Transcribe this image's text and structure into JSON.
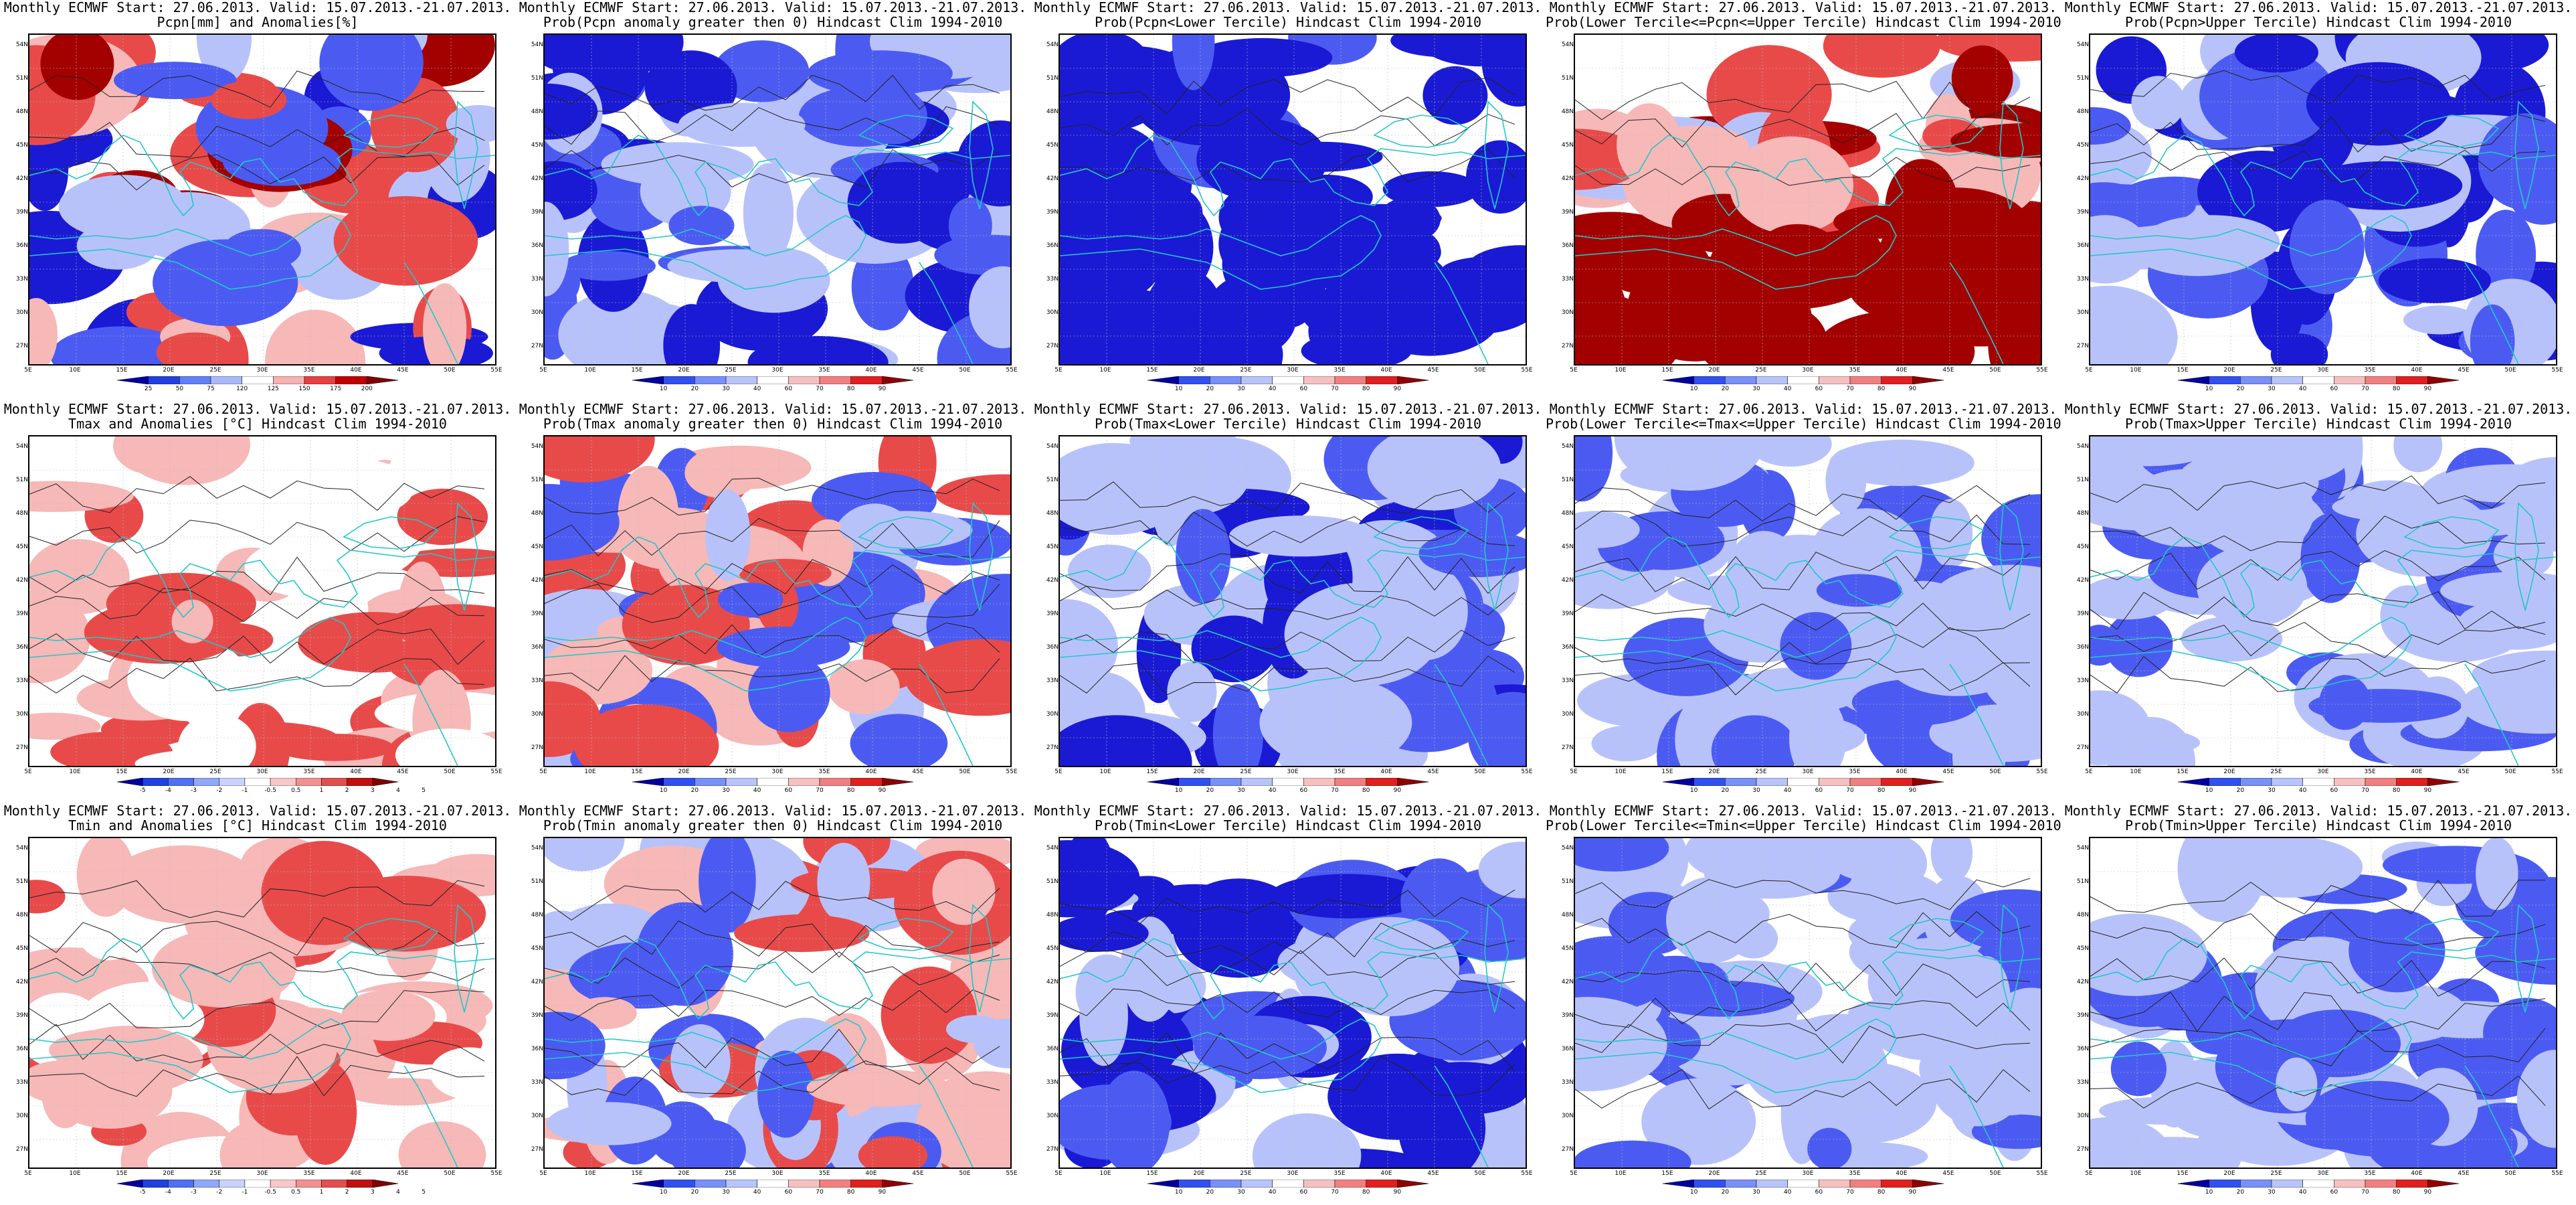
{
  "figure": {
    "lat_ticks": [
      "54N",
      "51N",
      "48N",
      "45N",
      "42N",
      "39N",
      "36N",
      "33N",
      "30N",
      "27N"
    ],
    "lon_ticks": [
      "5E",
      "10E",
      "15E",
      "20E",
      "25E",
      "30E",
      "35E",
      "40E",
      "45E",
      "50E",
      "55E"
    ],
    "colors": {
      "deep_blue": "#1a1ad4",
      "mid_blue": "#4b5bf2",
      "light_blue": "#b8c2fa",
      "white": "#ffffff",
      "light_red": "#f7b8b8",
      "mid_red": "#e84a4a",
      "deep_red": "#a30000",
      "coast": "#22c8c8",
      "contour": "#222222"
    }
  },
  "panels": [
    {
      "title1": "Monthly ECMWF Start: 27.06.2013. Valid: 15.07.2013.-21.07.2013.",
      "title2": "Pcpn[mm] and Anomalies[%]",
      "colorbar_labels": [
        "25",
        "50",
        "75",
        "120",
        "125",
        "150",
        "175",
        "200"
      ],
      "style": "pcpn_anom"
    },
    {
      "title1": "Monthly ECMWF Start: 27.06.2013. Valid: 15.07.2013.-21.07.2013.",
      "title2": "Prob(Pcpn anomaly greater then 0) Hindcast Clim 1994-2010",
      "colorbar_labels": [
        "10",
        "20",
        "30",
        "40",
        "60",
        "70",
        "80",
        "90"
      ],
      "style": "prob_blue"
    },
    {
      "title1": "Monthly ECMWF Start: 27.06.2013. Valid: 15.07.2013.-21.07.2013.",
      "title2": "Prob(Pcpn<Lower Tercile) Hindcast Clim 1994-2010",
      "colorbar_labels": [
        "10",
        "20",
        "30",
        "40",
        "60",
        "70",
        "80",
        "90"
      ],
      "style": "prob_deepblue"
    },
    {
      "title1": "Monthly ECMWF Start: 27.06.2013. Valid: 15.07.2013.-21.07.2013.",
      "title2": "Prob(Lower Tercile<=Pcpn<=Upper Tercile) Hindcast Clim 1994-2010",
      "colorbar_labels": [
        "10",
        "20",
        "30",
        "40",
        "60",
        "70",
        "80",
        "90"
      ],
      "style": "prob_red"
    },
    {
      "title1": "Monthly ECMWF Start: 27.06.2013. Valid: 15.07.2013.-21.07.2013.",
      "title2": "Prob(Pcpn>Upper Tercile) Hindcast Clim 1994-2010",
      "colorbar_labels": [
        "10",
        "20",
        "30",
        "40",
        "60",
        "70",
        "80",
        "90"
      ],
      "style": "prob_blue"
    },
    {
      "title1": "Monthly ECMWF Start: 27.06.2013. Valid: 15.07.2013.-21.07.2013.",
      "title2": "Tmax and Anomalies [°C] Hindcast Clim 1994-2010",
      "colorbar_labels": [
        "-5",
        "-4",
        "-3",
        "-2",
        "-1",
        "-0.5",
        "0.5",
        "1",
        "2",
        "3",
        "4",
        "5"
      ],
      "style": "temp_anom"
    },
    {
      "title1": "Monthly ECMWF Start: 27.06.2013. Valid: 15.07.2013.-21.07.2013.",
      "title2": "Prob(Tmax anomaly greater then 0) Hindcast Clim 1994-2010",
      "colorbar_labels": [
        "10",
        "20",
        "30",
        "40",
        "60",
        "70",
        "80",
        "90"
      ],
      "style": "prob_mixed"
    },
    {
      "title1": "Monthly ECMWF Start: 27.06.2013. Valid: 15.07.2013.-21.07.2013.",
      "title2": "Prob(Tmax<Lower Tercile) Hindcast Clim 1994-2010",
      "colorbar_labels": [
        "10",
        "20",
        "30",
        "40",
        "60",
        "70",
        "80",
        "90"
      ],
      "style": "prob_blue"
    },
    {
      "title1": "Monthly ECMWF Start: 27.06.2013. Valid: 15.07.2013.-21.07.2013.",
      "title2": "Prob(Lower Tercile<=Tmax<=Upper Tercile) Hindcast Clim 1994-2010",
      "colorbar_labels": [
        "10",
        "20",
        "30",
        "40",
        "60",
        "70",
        "80",
        "90"
      ],
      "style": "prob_light"
    },
    {
      "title1": "Monthly ECMWF Start: 27.06.2013. Valid: 15.07.2013.-21.07.2013.",
      "title2": "Prob(Tmax>Upper Tercile) Hindcast Clim 1994-2010",
      "colorbar_labels": [
        "10",
        "20",
        "30",
        "40",
        "60",
        "70",
        "80",
        "90"
      ],
      "style": "prob_light"
    },
    {
      "title1": "Monthly ECMWF Start: 27.06.2013. Valid: 15.07.2013.-21.07.2013.",
      "title2": "Tmin and Anomalies [°C] Hindcast Clim 1994-2010",
      "colorbar_labels": [
        "-5",
        "-4",
        "-3",
        "-2",
        "-1",
        "-0.5",
        "0.5",
        "1",
        "2",
        "3",
        "4",
        "5"
      ],
      "style": "temp_anom"
    },
    {
      "title1": "Monthly ECMWF Start: 27.06.2013. Valid: 15.07.2013.-21.07.2013.",
      "title2": "Prob(Tmin anomaly greater then 0) Hindcast Clim 1994-2010",
      "colorbar_labels": [
        "10",
        "20",
        "30",
        "40",
        "60",
        "70",
        "80",
        "90"
      ],
      "style": "prob_mixed"
    },
    {
      "title1": "Monthly ECMWF Start: 27.06.2013. Valid: 15.07.2013.-21.07.2013.",
      "title2": "Prob(Tmin<Lower Tercile) Hindcast Clim 1994-2010",
      "colorbar_labels": [
        "10",
        "20",
        "30",
        "40",
        "60",
        "70",
        "80",
        "90"
      ],
      "style": "prob_blue"
    },
    {
      "title1": "Monthly ECMWF Start: 27.06.2013. Valid: 15.07.2013.-21.07.2013.",
      "title2": "Prob(Lower Tercile<=Tmin<=Upper Tercile) Hindcast Clim 1994-2010",
      "colorbar_labels": [
        "10",
        "20",
        "30",
        "40",
        "60",
        "70",
        "80",
        "90"
      ],
      "style": "prob_light"
    },
    {
      "title1": "Monthly ECMWF Start: 27.06.2013. Valid: 15.07.2013.-21.07.2013.",
      "title2": "Prob(Tmin>Upper Tercile) Hindcast Clim 1994-2010",
      "colorbar_labels": [
        "10",
        "20",
        "30",
        "40",
        "60",
        "70",
        "80",
        "90"
      ],
      "style": "prob_light"
    }
  ]
}
